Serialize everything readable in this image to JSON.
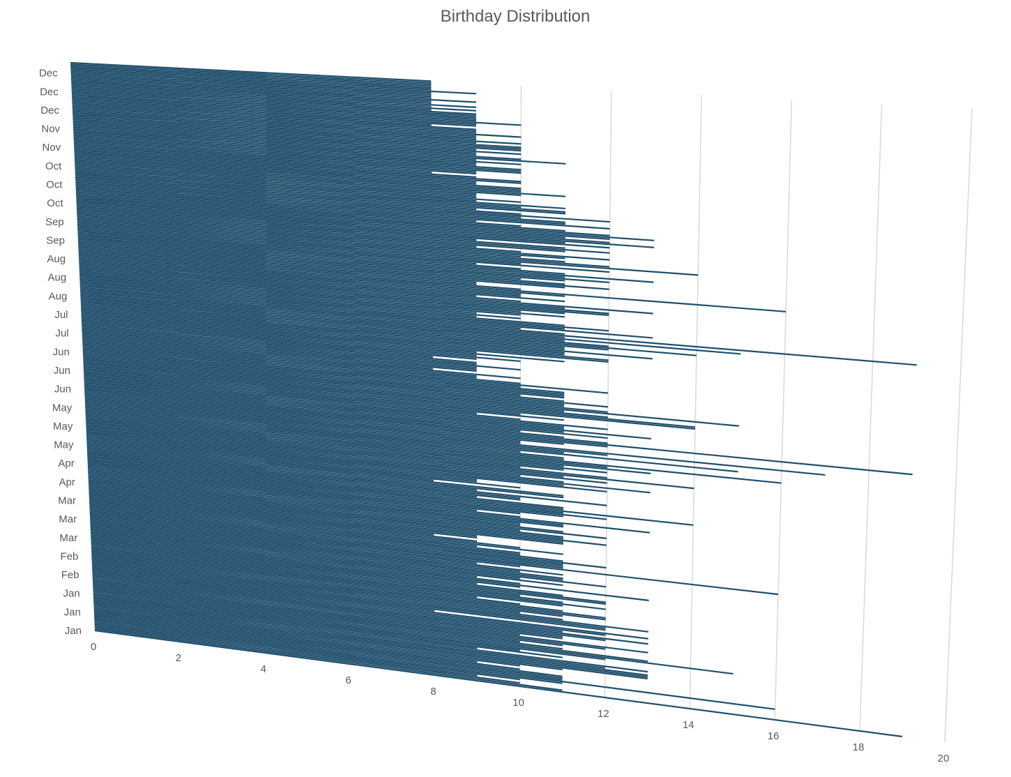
{
  "chart_data": {
    "type": "bar",
    "orientation": "horizontal",
    "perspective": "3d",
    "title": "Birthday Distribution",
    "xlabel": "",
    "ylabel": "",
    "xlim": [
      0,
      20
    ],
    "x_ticks": [
      "0",
      "2",
      "4",
      "6",
      "8",
      "10",
      "12",
      "14",
      "16",
      "18",
      "20"
    ],
    "grid": true,
    "legend": "none",
    "bar_color": "#1f4e6c",
    "gridline_color": "#d9d9d9",
    "month_labels": [
      "Jan",
      "Jan",
      "Jan",
      "Feb",
      "Feb",
      "Mar",
      "Mar",
      "Mar",
      "Apr",
      "Apr",
      "May",
      "May",
      "May",
      "Jun",
      "Jun",
      "Jun",
      "Jul",
      "Jul",
      "Aug",
      "Aug",
      "Aug",
      "Sep",
      "Sep",
      "Oct",
      "Oct",
      "Oct",
      "Nov",
      "Nov",
      "Dec",
      "Dec",
      "Dec"
    ],
    "values": [
      19,
      11,
      10,
      9,
      10,
      11,
      16,
      11,
      11,
      11,
      10,
      9,
      10,
      11,
      13,
      13,
      13,
      12,
      13,
      9,
      11,
      10,
      12,
      15,
      13,
      11,
      10,
      11,
      12,
      13,
      10,
      11,
      11,
      12,
      13,
      11,
      12,
      13,
      8,
      12,
      12,
      13,
      11,
      10,
      11,
      12,
      12,
      11,
      10,
      9,
      11,
      12,
      11,
      10,
      12,
      12,
      11,
      9,
      10,
      13,
      10,
      9,
      11,
      10,
      12,
      11,
      11,
      10,
      11,
      9,
      10,
      16,
      11,
      11,
      11,
      12,
      11,
      10,
      10,
      9,
      11,
      10,
      9,
      8,
      9,
      9,
      11,
      11,
      12,
      11,
      11,
      10,
      12,
      11,
      10,
      10,
      11,
      11,
      13,
      10,
      9,
      10,
      11,
      12,
      11,
      14,
      11,
      11,
      9,
      10,
      10,
      12,
      9,
      11,
      11,
      8,
      10,
      9,
      9,
      12,
      11,
      13,
      11,
      10,
      12,
      11,
      14,
      12,
      10,
      11,
      12,
      11,
      13,
      12,
      16,
      11,
      11,
      10,
      15,
      11,
      12,
      17,
      10,
      10,
      11,
      12,
      19,
      12,
      11,
      10,
      12,
      11,
      13,
      11,
      11,
      12,
      10,
      9,
      11,
      10,
      14,
      14,
      12,
      11,
      15,
      12,
      11,
      11,
      12,
      11,
      10,
      11,
      11,
      11,
      11,
      10,
      12,
      10,
      9,
      9,
      10,
      8,
      9,
      9,
      9,
      10,
      9,
      9,
      8,
      9,
      10,
      9,
      11,
      9,
      12,
      12,
      11,
      11,
      13,
      11,
      11,
      12,
      14,
      12,
      11,
      15,
      11,
      19,
      11,
      10,
      13,
      11,
      12,
      11,
      9,
      10,
      9,
      10,
      11,
      10,
      11,
      12,
      12,
      11,
      13,
      10,
      9,
      11,
      10,
      10,
      11,
      16,
      10,
      9,
      9,
      11,
      12,
      11,
      10,
      11,
      12,
      11,
      13,
      11,
      10,
      9,
      12,
      10,
      14,
      12,
      11,
      10,
      11,
      12,
      10,
      9,
      11,
      12,
      11,
      9,
      12,
      11,
      13,
      12,
      11,
      12,
      13,
      12,
      11,
      10,
      9,
      12,
      11,
      11,
      10,
      12,
      10,
      9,
      11,
      11,
      10,
      11,
      9,
      10,
      9,
      9,
      9,
      10,
      11,
      10,
      10,
      10,
      9,
      9,
      10,
      10,
      9,
      8,
      9,
      9,
      10,
      10,
      10,
      9,
      9,
      10,
      9,
      11,
      10,
      9,
      9,
      10,
      9,
      10,
      10,
      10,
      9,
      10,
      9,
      9,
      9,
      10,
      9,
      9,
      9,
      8,
      9,
      9,
      10,
      9,
      9,
      9,
      9,
      9,
      8,
      9,
      8,
      9,
      8,
      8,
      9,
      8,
      8,
      8,
      8,
      9,
      8,
      8,
      8,
      8,
      8,
      8
    ]
  }
}
